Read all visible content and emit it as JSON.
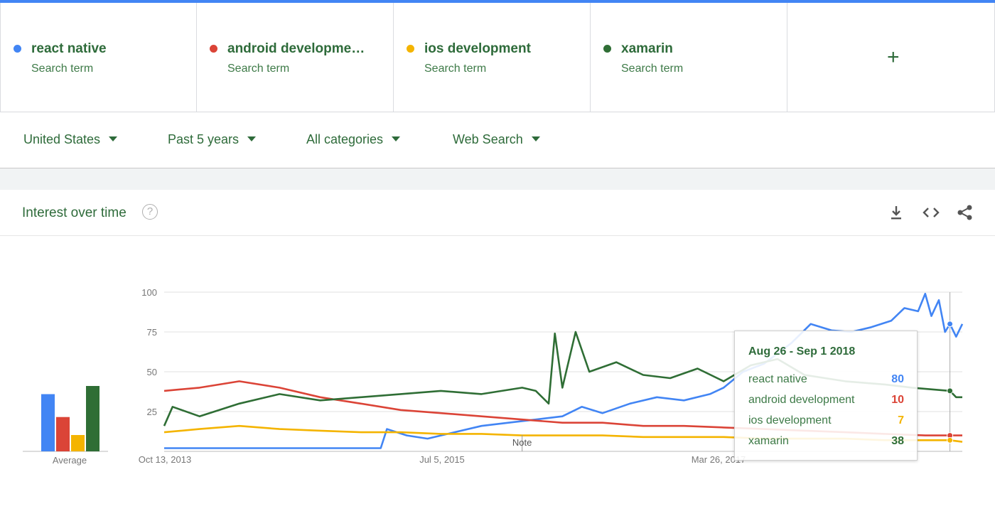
{
  "search_terms": [
    {
      "name": "react native",
      "sub": "Search term",
      "color": "#4285f4"
    },
    {
      "name": "android developme…",
      "sub": "Search term",
      "color": "#db4437"
    },
    {
      "name": "ios development",
      "sub": "Search term",
      "color": "#f4b400"
    },
    {
      "name": "xamarin",
      "sub": "Search term",
      "color": "#2f6e35"
    }
  ],
  "add_icon": "plus-icon",
  "filters": [
    {
      "label": "United States"
    },
    {
      "label": "Past 5 years"
    },
    {
      "label": "All categories"
    },
    {
      "label": "Web Search"
    }
  ],
  "card": {
    "title": "Interest over time",
    "help_glyph": "?",
    "icons": [
      "download-icon",
      "embed-code-icon",
      "share-icon"
    ]
  },
  "chart_data": {
    "type": "line",
    "title": "Interest over time",
    "xlabel": "",
    "ylabel": "",
    "ylim": [
      0,
      100
    ],
    "yticks": [
      25,
      50,
      75,
      100
    ],
    "xtick_labels": [
      "Oct 13, 2013",
      "Jul 5, 2015",
      "Mar 26, 2017"
    ],
    "x_range": [
      "2013-10-13",
      "2018-09-23"
    ],
    "grid": true,
    "note_label": "Note",
    "note_date": "2016-01-01",
    "average_label": "Average",
    "averages": [
      {
        "name": "react native",
        "value": 35
      },
      {
        "name": "android development",
        "value": 21
      },
      {
        "name": "ios development",
        "value": 10
      },
      {
        "name": "xamarin",
        "value": 40
      }
    ],
    "series": [
      {
        "name": "react native",
        "color": "#4285f4",
        "points": [
          [
            "2013-10-13",
            2
          ],
          [
            "2014-06-01",
            2
          ],
          [
            "2015-01-01",
            2
          ],
          [
            "2015-02-15",
            2
          ],
          [
            "2015-03-01",
            14
          ],
          [
            "2015-04-15",
            10
          ],
          [
            "2015-06-01",
            8
          ],
          [
            "2015-08-01",
            12
          ],
          [
            "2015-10-01",
            16
          ],
          [
            "2015-12-01",
            18
          ],
          [
            "2016-02-01",
            20
          ],
          [
            "2016-04-01",
            22
          ],
          [
            "2016-05-15",
            28
          ],
          [
            "2016-07-01",
            24
          ],
          [
            "2016-09-01",
            30
          ],
          [
            "2016-11-01",
            34
          ],
          [
            "2017-01-01",
            32
          ],
          [
            "2017-03-01",
            36
          ],
          [
            "2017-04-01",
            40
          ],
          [
            "2017-05-15",
            50
          ],
          [
            "2017-07-01",
            55
          ],
          [
            "2017-09-01",
            68
          ],
          [
            "2017-10-15",
            80
          ],
          [
            "2017-12-01",
            76
          ],
          [
            "2018-01-15",
            75
          ],
          [
            "2018-03-01",
            78
          ],
          [
            "2018-04-15",
            82
          ],
          [
            "2018-05-15",
            90
          ],
          [
            "2018-06-15",
            88
          ],
          [
            "2018-07-01",
            99
          ],
          [
            "2018-07-15",
            85
          ],
          [
            "2018-08-01",
            95
          ],
          [
            "2018-08-15",
            75
          ],
          [
            "2018-08-26",
            80
          ],
          [
            "2018-09-09",
            72
          ],
          [
            "2018-09-23",
            80
          ]
        ]
      },
      {
        "name": "android development",
        "color": "#db4437",
        "points": [
          [
            "2013-10-13",
            38
          ],
          [
            "2014-01-01",
            40
          ],
          [
            "2014-04-01",
            44
          ],
          [
            "2014-07-01",
            40
          ],
          [
            "2014-10-01",
            34
          ],
          [
            "2015-01-01",
            30
          ],
          [
            "2015-04-01",
            26
          ],
          [
            "2015-07-01",
            24
          ],
          [
            "2015-10-01",
            22
          ],
          [
            "2016-01-01",
            20
          ],
          [
            "2016-04-01",
            18
          ],
          [
            "2016-07-01",
            18
          ],
          [
            "2016-10-01",
            16
          ],
          [
            "2017-01-01",
            16
          ],
          [
            "2017-04-01",
            15
          ],
          [
            "2017-07-01",
            14
          ],
          [
            "2017-10-01",
            13
          ],
          [
            "2018-01-01",
            12
          ],
          [
            "2018-04-01",
            11
          ],
          [
            "2018-07-01",
            10
          ],
          [
            "2018-08-26",
            10
          ],
          [
            "2018-09-23",
            10
          ]
        ]
      },
      {
        "name": "ios development",
        "color": "#f4b400",
        "points": [
          [
            "2013-10-13",
            12
          ],
          [
            "2014-01-01",
            14
          ],
          [
            "2014-04-01",
            16
          ],
          [
            "2014-07-01",
            14
          ],
          [
            "2014-10-01",
            13
          ],
          [
            "2015-01-01",
            12
          ],
          [
            "2015-04-01",
            12
          ],
          [
            "2015-07-01",
            11
          ],
          [
            "2015-10-01",
            11
          ],
          [
            "2016-01-01",
            10
          ],
          [
            "2016-04-01",
            10
          ],
          [
            "2016-07-01",
            10
          ],
          [
            "2016-10-01",
            9
          ],
          [
            "2017-01-01",
            9
          ],
          [
            "2017-04-01",
            9
          ],
          [
            "2017-07-01",
            8
          ],
          [
            "2017-10-01",
            8
          ],
          [
            "2018-01-01",
            8
          ],
          [
            "2018-04-01",
            7
          ],
          [
            "2018-07-01",
            7
          ],
          [
            "2018-08-26",
            7
          ],
          [
            "2018-09-23",
            6
          ]
        ]
      },
      {
        "name": "xamarin",
        "color": "#2f6e35",
        "points": [
          [
            "2013-10-13",
            16
          ],
          [
            "2013-11-01",
            28
          ],
          [
            "2014-01-01",
            22
          ],
          [
            "2014-04-01",
            30
          ],
          [
            "2014-07-01",
            36
          ],
          [
            "2014-10-01",
            32
          ],
          [
            "2015-01-01",
            34
          ],
          [
            "2015-04-01",
            36
          ],
          [
            "2015-07-01",
            38
          ],
          [
            "2015-10-01",
            36
          ],
          [
            "2016-01-01",
            40
          ],
          [
            "2016-02-01",
            38
          ],
          [
            "2016-03-01",
            30
          ],
          [
            "2016-03-15",
            74
          ],
          [
            "2016-04-01",
            40
          ],
          [
            "2016-05-01",
            75
          ],
          [
            "2016-06-01",
            50
          ],
          [
            "2016-08-01",
            56
          ],
          [
            "2016-10-01",
            48
          ],
          [
            "2016-12-01",
            46
          ],
          [
            "2017-02-01",
            52
          ],
          [
            "2017-04-01",
            44
          ],
          [
            "2017-06-01",
            54
          ],
          [
            "2017-08-01",
            58
          ],
          [
            "2017-10-01",
            48
          ],
          [
            "2018-01-01",
            44
          ],
          [
            "2018-04-01",
            42
          ],
          [
            "2018-06-01",
            40
          ],
          [
            "2018-08-26",
            38
          ],
          [
            "2018-09-09",
            34
          ],
          [
            "2018-09-23",
            34
          ]
        ]
      }
    ]
  },
  "tooltip": {
    "date": "Aug 26 - Sep 1 2018",
    "rows": [
      {
        "label": "react native",
        "value": "80",
        "color": "#4285f4"
      },
      {
        "label": "android development",
        "value": "10",
        "color": "#db4437"
      },
      {
        "label": "ios development",
        "value": "7",
        "color": "#f4b400"
      },
      {
        "label": "xamarin",
        "value": "38",
        "color": "#2f6e35"
      }
    ]
  }
}
